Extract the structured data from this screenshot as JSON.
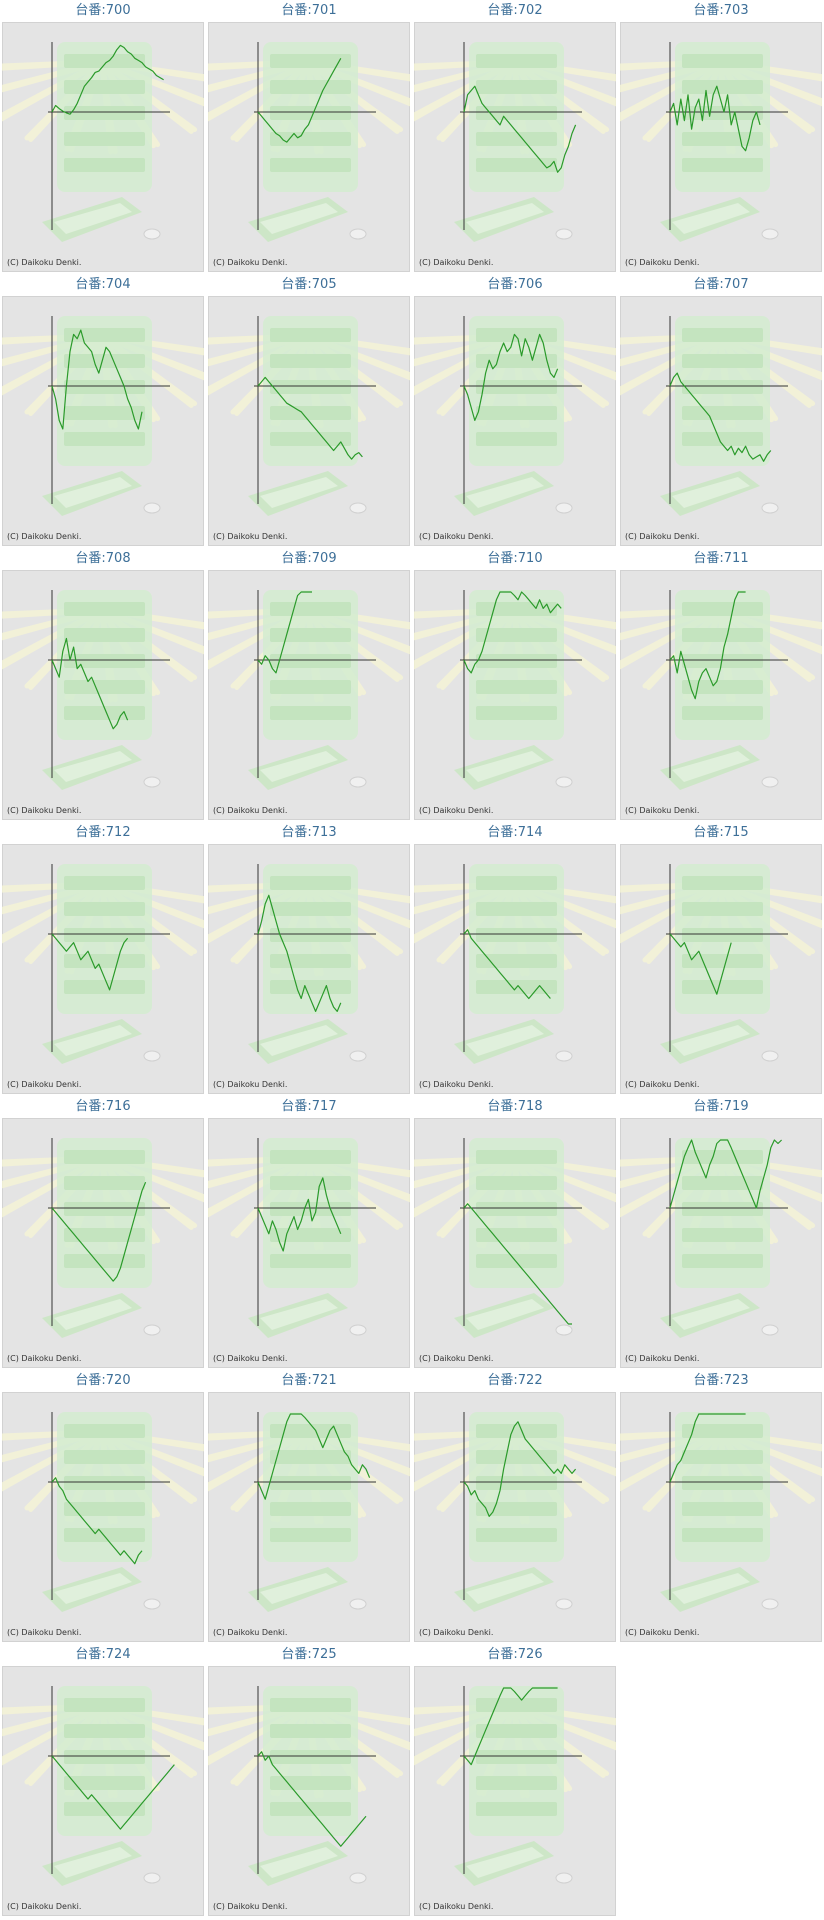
{
  "label_prefix": "台番:",
  "copyright": "(C) Daikoku Denki.",
  "colors": {
    "line": "#2a9a2a",
    "axis": "#333333",
    "panel_bg": "#e4e4e4",
    "caption": "#3d6f98"
  },
  "chart_data": [
    {
      "type": "line",
      "title": "台番:700",
      "values": [
        0,
        1.5,
        0.8,
        0.2,
        -0.2,
        -0.5,
        0.5,
        2,
        4,
        6,
        7,
        8,
        9.2,
        9.5,
        10.5,
        11.5,
        12,
        13,
        14.5,
        15.5,
        15,
        14,
        13.5,
        12.5,
        12,
        11.5,
        10.5,
        10,
        9.5,
        8.5,
        8,
        7.5
      ]
    },
    {
      "type": "line",
      "title": "台番:701",
      "values": [
        0,
        -1,
        -2,
        -3,
        -4,
        -5,
        -5.5,
        -6.5,
        -7,
        -6,
        -5,
        -6,
        -5.5,
        -4,
        -3,
        -1,
        1,
        3,
        5,
        6.5,
        8,
        9.5,
        11,
        12.5
      ]
    },
    {
      "type": "line",
      "title": "台番:702",
      "values": [
        0,
        4,
        5,
        6,
        4,
        2,
        1,
        0,
        -1,
        -2,
        -3,
        -1,
        -2,
        -3,
        -4,
        -5,
        -6,
        -7,
        -8,
        -9,
        -10,
        -11,
        -12,
        -13,
        -12.5,
        -11.5,
        -14,
        -13,
        -10,
        -8,
        -5,
        -3
      ]
    },
    {
      "type": "line",
      "title": "台番:703",
      "values": [
        0,
        2,
        -3,
        3,
        -2,
        4,
        -4,
        1,
        3,
        -2,
        5,
        -1,
        4,
        6,
        3,
        0,
        4,
        -3,
        0,
        -4,
        -8,
        -9,
        -6,
        -2,
        0,
        -3
      ]
    },
    {
      "type": "line",
      "title": "台番:704",
      "values": [
        0,
        -3,
        -8,
        -10,
        0,
        8,
        12,
        11,
        13,
        10,
        9,
        8,
        5,
        3,
        6,
        9,
        8,
        6,
        4,
        2,
        0,
        -3,
        -5,
        -8,
        -10,
        -6
      ]
    },
    {
      "type": "line",
      "title": "台番:705",
      "values": [
        0,
        1,
        2,
        1,
        0,
        -1,
        -2,
        -3,
        -4,
        -4.5,
        -5,
        -5.5,
        -6,
        -7,
        -8,
        -9,
        -10,
        -11,
        -12,
        -13,
        -14,
        -15,
        -14,
        -13,
        -14.5,
        -16,
        -17,
        -16,
        -15.5,
        -16.5
      ]
    },
    {
      "type": "line",
      "title": "台番:706",
      "values": [
        0,
        -2,
        -5,
        -8,
        -6,
        -2,
        3,
        6,
        4,
        5,
        8,
        10,
        8,
        9,
        12,
        11,
        7,
        11,
        9,
        6,
        9,
        12,
        10,
        6,
        3,
        2,
        4
      ]
    },
    {
      "type": "line",
      "title": "台番:707",
      "values": [
        0,
        2,
        3,
        1,
        0,
        -1,
        -2,
        -3,
        -4,
        -5,
        -6,
        -7,
        -9,
        -11,
        -13,
        -14,
        -15,
        -14,
        -16,
        -14.5,
        -15.5,
        -14,
        -16,
        -17,
        -16.5,
        -16,
        -17.5,
        -16,
        -15
      ]
    },
    {
      "type": "line",
      "title": "台番:708",
      "values": [
        0,
        -2,
        -4,
        2,
        5,
        0,
        3,
        -2,
        -1,
        -3,
        -5,
        -4,
        -6,
        -8,
        -10,
        -12,
        -14,
        -16,
        -15,
        -13,
        -12,
        -14
      ]
    },
    {
      "type": "line",
      "title": "台番:709",
      "values": [
        0,
        -1,
        1,
        0,
        -2,
        -3,
        0,
        3,
        6,
        9,
        12,
        15,
        18,
        21,
        24,
        27
      ]
    },
    {
      "type": "line",
      "title": "台番:710",
      "values": [
        0,
        -2,
        -3,
        -1,
        0,
        2,
        5,
        8,
        11,
        14,
        16,
        19,
        18,
        17,
        15,
        14,
        16,
        15,
        14,
        13,
        12,
        14,
        12,
        13,
        11,
        12,
        13,
        12
      ]
    },
    {
      "type": "line",
      "title": "台番:711",
      "values": [
        0,
        1,
        -3,
        2,
        -1,
        -4,
        -7,
        -9,
        -5,
        -3,
        -2,
        -4,
        -6,
        -5,
        -2,
        3,
        6,
        10,
        14,
        17,
        20,
        19
      ]
    },
    {
      "type": "line",
      "title": "台番:712",
      "values": [
        0,
        -1,
        -2,
        -3,
        -4,
        -3,
        -2,
        -4,
        -6,
        -5,
        -4,
        -6,
        -8,
        -7,
        -9,
        -11,
        -13,
        -10,
        -7,
        -4,
        -2,
        -1
      ]
    },
    {
      "type": "line",
      "title": "台番:713",
      "values": [
        0,
        3,
        7,
        9,
        6,
        3,
        0,
        -2,
        -4,
        -7,
        -10,
        -13,
        -15,
        -12,
        -14,
        -16,
        -18,
        -16,
        -14,
        -12,
        -15,
        -17,
        -18,
        -16
      ]
    },
    {
      "type": "line",
      "title": "台番:714",
      "values": [
        0,
        1,
        -1,
        -2,
        -3,
        -4,
        -5,
        -6,
        -7,
        -8,
        -9,
        -10,
        -11,
        -12,
        -13,
        -12,
        -13,
        -14,
        -15,
        -14,
        -13,
        -12,
        -13,
        -14,
        -15
      ]
    },
    {
      "type": "line",
      "title": "台番:715",
      "values": [
        0,
        -1,
        -2,
        -3,
        -2,
        -4,
        -6,
        -5,
        -4,
        -6,
        -8,
        -10,
        -12,
        -14,
        -11,
        -8,
        -5,
        -2
      ]
    },
    {
      "type": "line",
      "title": "台番:716",
      "values": [
        0,
        -1,
        -2,
        -3,
        -4,
        -5,
        -6,
        -7,
        -8,
        -9,
        -10,
        -11,
        -12,
        -13,
        -14,
        -15,
        -16,
        -17,
        -16,
        -14,
        -11,
        -8,
        -5,
        -2,
        1,
        4,
        6
      ]
    },
    {
      "type": "line",
      "title": "台番:717",
      "values": [
        0,
        -2,
        -4,
        -6,
        -3,
        -5,
        -8,
        -10,
        -6,
        -4,
        -2,
        -5,
        -3,
        0,
        2,
        -3,
        -1,
        5,
        7,
        3,
        0,
        -2,
        -4,
        -6
      ]
    },
    {
      "type": "line",
      "title": "台番:718",
      "values": [
        0,
        1,
        0,
        -1,
        -2,
        -3,
        -4,
        -5,
        -6,
        -7,
        -8,
        -9,
        -10,
        -11,
        -12,
        -13,
        -14,
        -15,
        -16,
        -17,
        -18,
        -19,
        -20,
        -21,
        -22,
        -23,
        -24,
        -25,
        -26,
        -27,
        -28
      ]
    },
    {
      "type": "line",
      "title": "台番:719",
      "values": [
        0,
        3,
        6,
        9,
        12,
        14,
        16,
        13,
        11,
        9,
        7,
        10,
        12,
        15,
        17,
        19,
        16,
        14,
        12,
        10,
        8,
        6,
        4,
        2,
        0,
        4,
        7,
        10,
        14,
        17,
        15,
        17
      ]
    },
    {
      "type": "line",
      "title": "台番:720",
      "values": [
        0,
        1,
        -1,
        -2,
        -4,
        -5,
        -6,
        -7,
        -8,
        -9,
        -10,
        -11,
        -12,
        -11,
        -12,
        -13,
        -14,
        -15,
        -16,
        -17,
        -16,
        -17,
        -18,
        -19,
        -17,
        -16
      ]
    },
    {
      "type": "line",
      "title": "台番:721",
      "values": [
        0,
        -2,
        -4,
        -1,
        2,
        5,
        8,
        11,
        14,
        17,
        20,
        18,
        16,
        15,
        14,
        13,
        12,
        10,
        8,
        10,
        12,
        13,
        11,
        9,
        7,
        6,
        4,
        3,
        2,
        4,
        3,
        1
      ]
    },
    {
      "type": "line",
      "title": "台番:722",
      "values": [
        0,
        -1,
        -3,
        -2,
        -4,
        -5,
        -6,
        -8,
        -7,
        -5,
        -2,
        3,
        7,
        11,
        13,
        14,
        12,
        10,
        9,
        8,
        7,
        6,
        5,
        4,
        3,
        2,
        3,
        2,
        4,
        3,
        2,
        3
      ]
    },
    {
      "type": "line",
      "title": "台番:723",
      "values": [
        0,
        2,
        4,
        5,
        7,
        9,
        11,
        14,
        17,
        20,
        23,
        25,
        24,
        23,
        22,
        21,
        20,
        19,
        18,
        17,
        18,
        17
      ]
    },
    {
      "type": "line",
      "title": "台番:724",
      "values": [
        0,
        -1,
        -2,
        -3,
        -4,
        -5,
        -6,
        -7,
        -8,
        -9,
        -10,
        -9,
        -10,
        -11,
        -12,
        -13,
        -14,
        -15,
        -16,
        -17,
        -16,
        -15,
        -14,
        -13,
        -12,
        -11,
        -10,
        -9,
        -8,
        -7,
        -6,
        -5,
        -4,
        -3,
        -2
      ]
    },
    {
      "type": "line",
      "title": "台番:725",
      "values": [
        0,
        1,
        -1,
        0,
        -2,
        -3,
        -4,
        -5,
        -6,
        -7,
        -8,
        -9,
        -10,
        -11,
        -12,
        -13,
        -14,
        -15,
        -16,
        -17,
        -18,
        -19,
        -20,
        -21,
        -20,
        -19,
        -18,
        -17,
        -16,
        -15,
        -14
      ]
    },
    {
      "type": "line",
      "title": "台番:726",
      "values": [
        0,
        -1,
        -2,
        0,
        2,
        4,
        6,
        8,
        10,
        12,
        14,
        16,
        18,
        17,
        15,
        14,
        13,
        14,
        15,
        16,
        17,
        18,
        20,
        22,
        24,
        26,
        28
      ]
    }
  ]
}
